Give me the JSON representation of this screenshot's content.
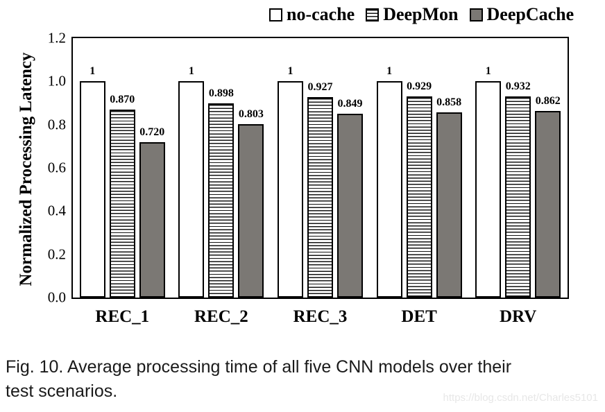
{
  "figure": {
    "caption_line1": "Fig. 10.  Average processing time of all five CNN models over their",
    "caption_line2": "test scenarios.",
    "watermark": "https://blog.csdn.net/Charles5101"
  },
  "chart_data": {
    "type": "bar",
    "title": "",
    "xlabel": "",
    "ylabel": "Normalized Processing Latency",
    "ylim": [
      0,
      1.2
    ],
    "yticks": [
      "0.0",
      "0.2",
      "0.4",
      "0.6",
      "0.8",
      "1.0",
      "1.2"
    ],
    "grid": false,
    "legend_position": "top-right",
    "categories": [
      "REC_1",
      "REC_2",
      "REC_3",
      "DET",
      "DRV"
    ],
    "series": [
      {
        "name": "no-cache",
        "style": "white",
        "values": [
          1,
          1,
          1,
          1,
          1
        ],
        "labels": [
          "1",
          "1",
          "1",
          "1",
          "1"
        ]
      },
      {
        "name": "DeepMon",
        "style": "hstripes",
        "values": [
          0.87,
          0.898,
          0.927,
          0.929,
          0.932
        ],
        "labels": [
          "0.870",
          "0.898",
          "0.927",
          "0.929",
          "0.932"
        ]
      },
      {
        "name": "DeepCache",
        "style": "gray",
        "values": [
          0.72,
          0.803,
          0.849,
          0.858,
          0.862
        ],
        "labels": [
          "0.720",
          "0.803",
          "0.849",
          "0.858",
          "0.862"
        ]
      }
    ],
    "colors": {
      "bar_border": "#000000",
      "no_cache_fill": "#ffffff",
      "deepmon_stripe": "#141414",
      "deepcache_fill": "#7b7874"
    }
  }
}
